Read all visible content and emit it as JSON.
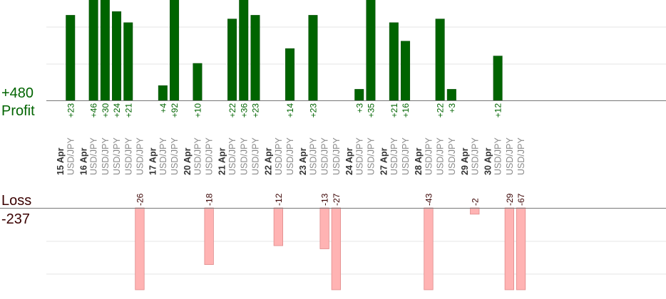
{
  "summary": {
    "profit_total": "+480",
    "profit_label": "Profit",
    "loss_label": "Loss",
    "loss_total": "-237"
  },
  "colors": {
    "profit_bar": "#006400",
    "profit_bar_edge": "#0a4d0a",
    "loss_bar": "#ffb3b3",
    "loss_bar_edge": "#e08a8a",
    "profit_label": "#006400",
    "loss_label": "#3a0000",
    "date_label": "#333333",
    "pair_label": "#888888",
    "grid": "#e6e6e6",
    "baseline": "#777777"
  },
  "chart_data": {
    "type": "bar",
    "unit": "pips",
    "grid": true,
    "ylim_profit": [
      0,
      30
    ],
    "ylim_loss": [
      -26,
      0
    ],
    "days": [
      {
        "date": "15 Apr",
        "trades": [
          {
            "pair": "USD/JPY",
            "profit": 23
          }
        ]
      },
      {
        "date": "16 Apr",
        "trades": [
          {
            "pair": "USD/JPY",
            "profit": 46
          },
          {
            "pair": "USD/JPY",
            "profit": 30
          },
          {
            "pair": "USD/JPY",
            "profit": 24
          },
          {
            "pair": "USD/JPY",
            "profit": 21
          },
          {
            "pair": "USD/JPY",
            "loss": -26
          }
        ]
      },
      {
        "date": "17 Apr",
        "trades": [
          {
            "pair": "USD/JPY",
            "profit": 4
          },
          {
            "pair": "USD/JPY",
            "profit": 92
          }
        ]
      },
      {
        "date": "20 Apr",
        "trades": [
          {
            "pair": "USD/JPY",
            "profit": 10
          },
          {
            "pair": "USD/JPY",
            "loss": -18
          }
        ]
      },
      {
        "date": "21 Apr",
        "trades": [
          {
            "pair": "USD/JPY",
            "profit": 22
          },
          {
            "pair": "USD/JPY",
            "profit": 36
          },
          {
            "pair": "USD/JPY",
            "profit": 23
          }
        ]
      },
      {
        "date": "22 Apr",
        "trades": [
          {
            "pair": "USD/JPY",
            "loss": -12
          },
          {
            "pair": "USD/JPY",
            "profit": 14
          }
        ]
      },
      {
        "date": "23 Apr",
        "trades": [
          {
            "pair": "USD/JPY",
            "profit": 23
          },
          {
            "pair": "USD/JPY",
            "loss": -13
          },
          {
            "pair": "USD/JPY",
            "loss": -27
          }
        ]
      },
      {
        "date": "24 Apr",
        "trades": [
          {
            "pair": "USD/JPY",
            "profit": 3
          },
          {
            "pair": "USD/JPY",
            "profit": 35
          }
        ]
      },
      {
        "date": "27 Apr",
        "trades": [
          {
            "pair": "USD/JPY",
            "profit": 21
          },
          {
            "pair": "USD/JPY",
            "profit": 16
          }
        ]
      },
      {
        "date": "28 Apr",
        "trades": [
          {
            "pair": "USD/JPY",
            "loss": -43
          },
          {
            "pair": "USD/JPY",
            "profit": 22
          },
          {
            "pair": "USD/JPY",
            "profit": 3
          }
        ]
      },
      {
        "date": "29 Apr",
        "trades": [
          {
            "pair": "USD/JPY",
            "loss": -2
          }
        ]
      },
      {
        "date": "30 Apr",
        "trades": [
          {
            "pair": "USD/JPY",
            "profit": 12
          },
          {
            "pair": "USD/JPY",
            "loss": -29
          },
          {
            "pair": "USD/JPY",
            "loss": -67
          }
        ]
      }
    ]
  }
}
